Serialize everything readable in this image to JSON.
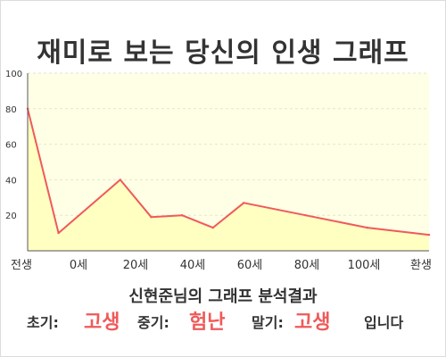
{
  "page": {
    "title": "재미로 보는 당신의 인생 그래프",
    "subtitle": "신현준님의 그래프 분석결과",
    "summary": {
      "early_label": "초기:",
      "early_value": "고생",
      "mid_label": "중기:",
      "mid_value": "험난",
      "late_label": "말기:",
      "late_value": "고생",
      "ending": "입니다"
    }
  },
  "colors": {
    "line": "#ef5a5a",
    "fill": "#ffffc2",
    "plot_bg": "#ffffe6",
    "accent_text": "#ef5a5a"
  },
  "chart_data": {
    "type": "area",
    "x_tick_labels": [
      "전생",
      "0세",
      "20세",
      "40세",
      "60세",
      "80세",
      "100세",
      "환생"
    ],
    "x": [
      -10,
      0,
      20,
      30,
      40,
      50,
      60,
      80,
      100,
      120
    ],
    "values": [
      80,
      10,
      40,
      19,
      20,
      13,
      27,
      20,
      13,
      9
    ],
    "ylim": [
      0,
      100
    ],
    "yticks": [
      20,
      40,
      60,
      80,
      100
    ],
    "grid": true,
    "legend": "none"
  }
}
